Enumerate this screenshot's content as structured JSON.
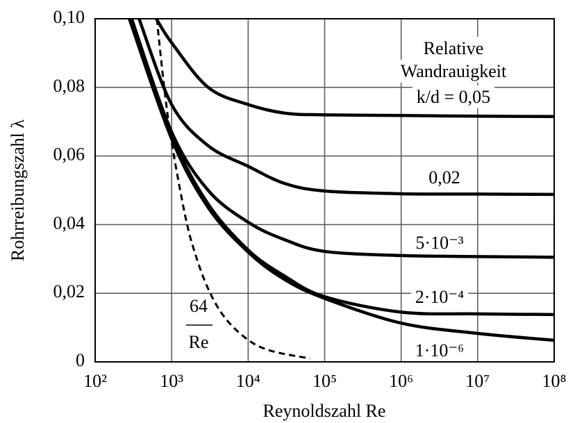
{
  "chart_data": {
    "type": "line",
    "x_label": "Reynoldszahl Re",
    "y_label": "Rohrreibungszahl λ",
    "legend_title": [
      "Relative",
      "Wandrauigkeit"
    ],
    "xscale": "log",
    "xlim": [
      100,
      100000000
    ],
    "xticks": [
      {
        "value": 100,
        "label": "10²"
      },
      {
        "value": 1000,
        "label": "10³"
      },
      {
        "value": 10000,
        "label": "10⁴"
      },
      {
        "value": 100000,
        "label": "10⁵"
      },
      {
        "value": 1000000,
        "label": "10⁶"
      },
      {
        "value": 10000000,
        "label": "10⁷"
      },
      {
        "value": 100000000,
        "label": "10⁸"
      }
    ],
    "ylim": [
      0,
      0.1
    ],
    "yticks": [
      0,
      {
        "value": 0.02,
        "label": "0,02"
      },
      {
        "value": 0.04,
        "label": "0,04"
      },
      {
        "value": 0.06,
        "label": "0,06"
      },
      {
        "value": 0.08,
        "label": "0,08"
      },
      {
        "value": 0.1,
        "label": "0,10"
      }
    ],
    "grid": true,
    "series": [
      {
        "name": "k/d = 0,05",
        "color": "#000000",
        "dash": false,
        "x": [
          630,
          1000,
          3000,
          10000,
          30000,
          100000,
          1000000,
          10000000,
          100000000
        ],
        "values": [
          0.1,
          0.093,
          0.08,
          0.075,
          0.0725,
          0.072,
          0.0718,
          0.0716,
          0.0715
        ]
      },
      {
        "name": "0,02",
        "color": "#000000",
        "dash": false,
        "x": [
          375,
          1000,
          3000,
          10000,
          30000,
          100000,
          1000000,
          10000000,
          100000000
        ],
        "values": [
          0.1,
          0.075,
          0.063,
          0.057,
          0.052,
          0.0498,
          0.049,
          0.0489,
          0.0488
        ]
      },
      {
        "name": "5·10⁻³",
        "color": "#000000",
        "dash": false,
        "x": [
          300,
          1000,
          3000,
          10000,
          30000,
          100000,
          1000000,
          10000000,
          100000000
        ],
        "values": [
          0.1,
          0.067,
          0.05,
          0.0407,
          0.0356,
          0.0322,
          0.031,
          0.0307,
          0.0305
        ]
      },
      {
        "name": "2·10⁻⁴",
        "color": "#000000",
        "dash": false,
        "x": [
          280,
          1000,
          3000,
          10000,
          30000,
          100000,
          1000000,
          10000000,
          100000000
        ],
        "values": [
          0.1,
          0.066,
          0.046,
          0.0326,
          0.025,
          0.019,
          0.0145,
          0.014,
          0.0138
        ]
      },
      {
        "name": "1·10⁻⁶",
        "color": "#000000",
        "dash": false,
        "x": [
          280,
          1000,
          3000,
          10000,
          30000,
          100000,
          1000000,
          10000000,
          100000000
        ],
        "values": [
          0.1,
          0.065,
          0.045,
          0.032,
          0.024,
          0.0185,
          0.0113,
          0.0083,
          0.0063
        ]
      },
      {
        "label": {
          "numerator": "64",
          "denominator": "Re"
        },
        "color": "#000000",
        "dash": true,
        "x": [
          640,
          800,
          1000,
          1500,
          2000,
          3000,
          5000,
          10000,
          20000,
          64000
        ],
        "values": [
          0.1,
          0.08,
          0.064,
          0.0427,
          0.032,
          0.0213,
          0.0128,
          0.0064,
          0.0032,
          0.001
        ]
      }
    ]
  }
}
